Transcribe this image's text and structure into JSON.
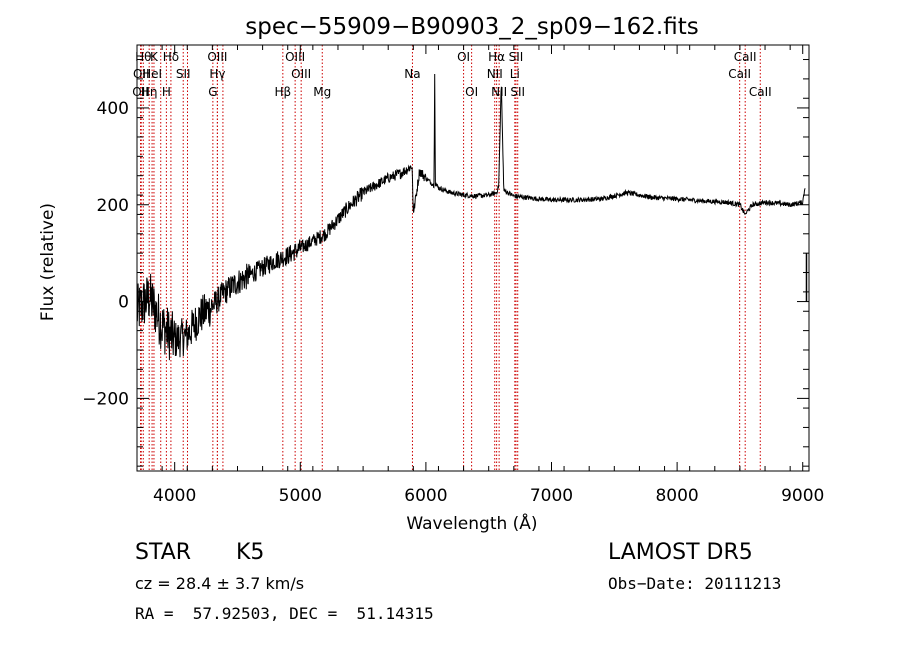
{
  "chart_data": {
    "type": "line",
    "title": "spec−55909−B90903_2_sp09−162.fits",
    "xlabel": "Wavelength (Å)",
    "ylabel": "Flux (relative)",
    "xlim": [
      3700,
      9050
    ],
    "ylim": [
      -350,
      530
    ],
    "xticks": [
      4000,
      5000,
      6000,
      7000,
      8000,
      9000
    ],
    "yticks": [
      -200,
      0,
      200,
      400
    ],
    "ytick_labels": [
      "−200",
      "0",
      "200",
      "400"
    ],
    "line_color": "#000000",
    "marker_color": "#cc0000",
    "grid": false,
    "spectrum": {
      "name": "",
      "points": [
        [
          3700,
          -20
        ],
        [
          3800,
          10
        ],
        [
          3900,
          -50
        ],
        [
          4000,
          -80
        ],
        [
          4100,
          -70
        ],
        [
          4200,
          -30
        ],
        [
          4300,
          -10
        ],
        [
          4400,
          20
        ],
        [
          4500,
          40
        ],
        [
          4600,
          55
        ],
        [
          4700,
          70
        ],
        [
          4800,
          85
        ],
        [
          4900,
          95
        ],
        [
          5000,
          110
        ],
        [
          5100,
          125
        ],
        [
          5200,
          140
        ],
        [
          5300,
          170
        ],
        [
          5400,
          200
        ],
        [
          5500,
          225
        ],
        [
          5600,
          240
        ],
        [
          5700,
          255
        ],
        [
          5800,
          265
        ],
        [
          5890,
          280
        ],
        [
          5900,
          180
        ],
        [
          5950,
          270
        ],
        [
          6000,
          255
        ],
        [
          6065,
          240
        ],
        [
          6070,
          470
        ],
        [
          6075,
          245
        ],
        [
          6100,
          235
        ],
        [
          6200,
          225
        ],
        [
          6300,
          220
        ],
        [
          6400,
          218
        ],
        [
          6500,
          220
        ],
        [
          6563,
          225
        ],
        [
          6580,
          240
        ],
        [
          6600,
          455
        ],
        [
          6620,
          230
        ],
        [
          6700,
          218
        ],
        [
          6800,
          215
        ],
        [
          6900,
          212
        ],
        [
          7000,
          210
        ],
        [
          7200,
          210
        ],
        [
          7400,
          212
        ],
        [
          7600,
          225
        ],
        [
          7800,
          215
        ],
        [
          8000,
          212
        ],
        [
          8200,
          208
        ],
        [
          8400,
          205
        ],
        [
          8500,
          200
        ],
        [
          8540,
          180
        ],
        [
          8600,
          200
        ],
        [
          8700,
          205
        ],
        [
          8800,
          203
        ],
        [
          8900,
          200
        ],
        [
          9000,
          205
        ],
        [
          9020,
          240
        ]
      ]
    },
    "lines": [
      {
        "wl": 3750,
        "row": 0,
        "label": "Hθ"
      },
      {
        "wl": 3734,
        "row": 1,
        "label": "OII"
      },
      {
        "wl": 3728,
        "row": 2,
        "label": "OII"
      },
      {
        "wl": 3835,
        "row": 0,
        "label": "K"
      },
      {
        "wl": 3820,
        "row": 1,
        "label": "HeI"
      },
      {
        "wl": 3797,
        "row": 2,
        "label": "Hη"
      },
      {
        "wl": 3970,
        "row": 0,
        "label": "Hδ"
      },
      {
        "wl": 4068,
        "row": 1,
        "label": "SII"
      },
      {
        "wl": 3934,
        "row": 2,
        "label": "H"
      },
      {
        "wl": 4340,
        "row": 0,
        "label": "OIII"
      },
      {
        "wl": 4340,
        "row": 1,
        "label": "Hγ"
      },
      {
        "wl": 4304,
        "row": 2,
        "label": "G"
      },
      {
        "wl": 4959,
        "row": 0,
        "label": "OIII"
      },
      {
        "wl": 5007,
        "row": 1,
        "label": "OIII"
      },
      {
        "wl": 4861,
        "row": 2,
        "label": "Hβ"
      },
      {
        "wl": 5175,
        "row": 2,
        "label": "Mg"
      },
      {
        "wl": 5893,
        "row": 1,
        "label": "Na"
      },
      {
        "wl": 6300,
        "row": 0,
        "label": "OI"
      },
      {
        "wl": 6364,
        "row": 2,
        "label": "OI"
      },
      {
        "wl": 6563,
        "row": 0,
        "label": "Hα"
      },
      {
        "wl": 6548,
        "row": 1,
        "label": "NII"
      },
      {
        "wl": 6583,
        "row": 2,
        "label": "NII"
      },
      {
        "wl": 6717,
        "row": 0,
        "label": "SII"
      },
      {
        "wl": 6708,
        "row": 1,
        "label": "Li"
      },
      {
        "wl": 6731,
        "row": 2,
        "label": "SII"
      },
      {
        "wl": 8542,
        "row": 0,
        "label": "CaII"
      },
      {
        "wl": 8498,
        "row": 1,
        "label": "CaII"
      },
      {
        "wl": 8662,
        "row": 2,
        "label": "CaII"
      },
      {
        "wl": 4102,
        "row": -1,
        "label": ""
      },
      {
        "wl": 4384,
        "row": -1,
        "label": ""
      },
      {
        "wl": 3889,
        "row": -1,
        "label": ""
      }
    ]
  },
  "info": {
    "object_class": "STAR",
    "subclass": "K5",
    "survey": "LAMOST DR5",
    "redshift_text": "cz = 28.4 ± 3.7 km/s",
    "obs_date": "Obs−Date: 20111213",
    "coords": "RA =  57.92503, DEC =  51.14315"
  }
}
